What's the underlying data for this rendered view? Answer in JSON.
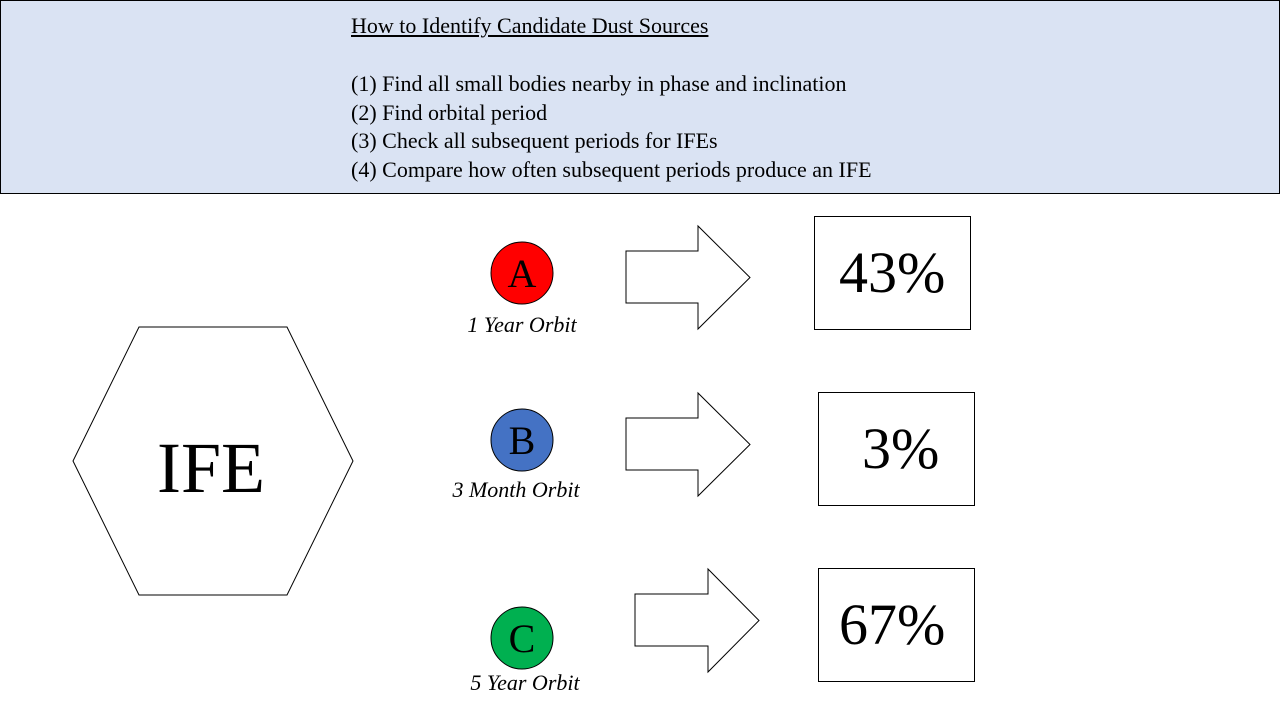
{
  "header": {
    "title": "How to Identify Candidate Dust Sources",
    "steps": [
      "(1) Find all small bodies nearby in phase and inclination",
      "(2) Find orbital period",
      "(3) Check all subsequent periods for IFEs",
      "(4) Compare how often subsequent periods produce an IFE"
    ]
  },
  "hexagon": {
    "label": "IFE"
  },
  "candidates": [
    {
      "letter": "A",
      "color": "#ff0000",
      "orbit": "1 Year Orbit",
      "percent": "43%"
    },
    {
      "letter": "B",
      "color": "#4472c4",
      "orbit": "3 Month Orbit",
      "percent": "3%"
    },
    {
      "letter": "C",
      "color": "#00b050",
      "orbit": "5 Year Orbit",
      "percent": "67%"
    }
  ]
}
